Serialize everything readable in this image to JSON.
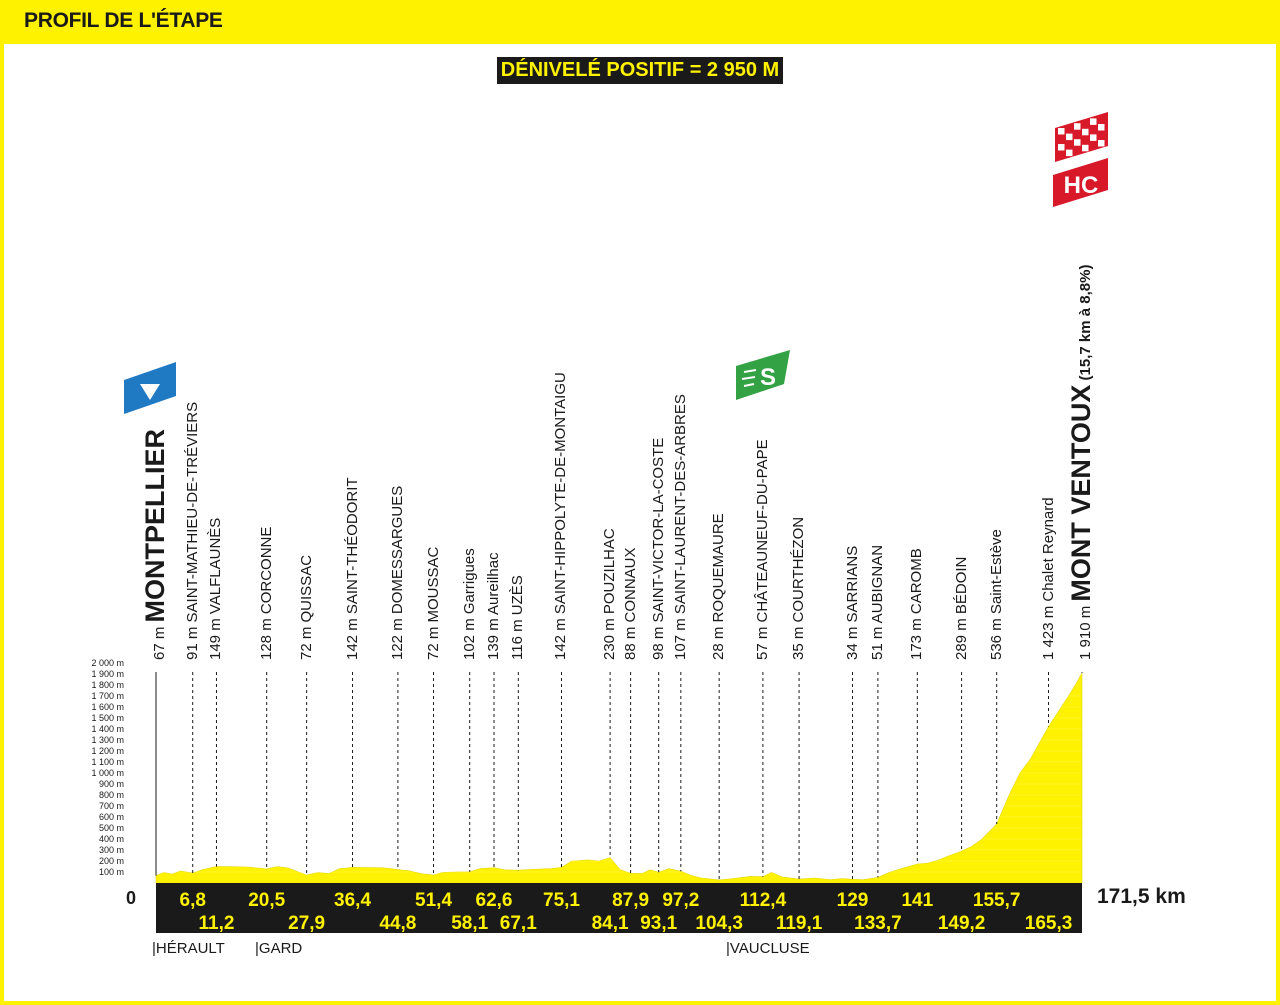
{
  "title": "PROFIL DE L'ÉTAPE",
  "denivele": "DÉNIVELÉ POSITIF = 2 950 M",
  "total_distance": "171,5 km",
  "start_km": "0",
  "departments": [
    "|HÉRAULT",
    "|GARD",
    "|VAUCLUSE"
  ],
  "markers": {
    "start": "start-flag-icon",
    "sprint": "S",
    "finish_category": "HC",
    "finish_flag": "checkered-flag-icon"
  },
  "colors": {
    "profile_fill": "#fff200",
    "bar": "#1a1a1a",
    "km_text": "#fff200",
    "start_marker": "#1f7ac3",
    "sprint_marker": "#33a244",
    "finish_marker": "#d7192a"
  },
  "chart_data": {
    "type": "area",
    "title": "PROFIL DE L'ÉTAPE",
    "ylabel_ticks": [
      "100 m",
      "200 m",
      "300 m",
      "400 m",
      "500 m",
      "600 m",
      "700 m",
      "800 m",
      "900 m",
      "1 000 m",
      "1 100 m",
      "1 200 m",
      "1 300 m",
      "1 400 m",
      "1 500 m",
      "1 600 m",
      "1 700 m",
      "1 800 m",
      "1 900 m",
      "2 000 m"
    ],
    "ylim": [
      0,
      2000
    ],
    "xlim": [
      0,
      171.5
    ],
    "waypoints": [
      {
        "km": 0,
        "km_label": "",
        "alt": 67,
        "label": "67 m",
        "name": "MONTPELLIER",
        "note": "",
        "major": true
      },
      {
        "km": 6.8,
        "km_label": "6,8",
        "alt": 91,
        "label": "91 m",
        "name": "SAINT-MATHIEU-DE-TRÉVIERS",
        "note": "",
        "major": false
      },
      {
        "km": 11.2,
        "km_label": "11,2",
        "alt": 149,
        "label": "149 m",
        "name": "VALFLAUNÈS",
        "note": "",
        "major": false
      },
      {
        "km": 20.5,
        "km_label": "20,5",
        "alt": 128,
        "label": "128 m",
        "name": "CORCONNE",
        "note": "",
        "major": false
      },
      {
        "km": 27.9,
        "km_label": "27,9",
        "alt": 72,
        "label": "72 m",
        "name": "QUISSAC",
        "note": "",
        "major": false
      },
      {
        "km": 36.4,
        "km_label": "36,4",
        "alt": 142,
        "label": "142 m",
        "name": "SAINT-THÉODORIT",
        "note": "",
        "major": false
      },
      {
        "km": 44.8,
        "km_label": "44,8",
        "alt": 122,
        "label": "122 m",
        "name": "DOMESSARGUES",
        "note": "",
        "major": false
      },
      {
        "km": 51.4,
        "km_label": "51,4",
        "alt": 72,
        "label": "72 m",
        "name": "MOUSSAC",
        "note": "",
        "major": false
      },
      {
        "km": 58.1,
        "km_label": "58,1",
        "alt": 102,
        "label": "102 m",
        "name": "Garrigues",
        "note": "",
        "major": false
      },
      {
        "km": 62.6,
        "km_label": "62,6",
        "alt": 139,
        "label": "139 m",
        "name": "Aureilhac",
        "note": "",
        "major": false
      },
      {
        "km": 67.1,
        "km_label": "67,1",
        "alt": 116,
        "label": "116 m",
        "name": "UZÈS",
        "note": "",
        "major": false
      },
      {
        "km": 75.1,
        "km_label": "75,1",
        "alt": 142,
        "label": "142 m",
        "name": "SAINT-HIPPOLYTE-DE-MONTAIGU",
        "note": "",
        "major": false
      },
      {
        "km": 84.1,
        "km_label": "84,1",
        "alt": 230,
        "label": "230 m",
        "name": "POUZILHAC",
        "note": "",
        "major": false
      },
      {
        "km": 87.9,
        "km_label": "87,9",
        "alt": 88,
        "label": "88 m",
        "name": "CONNAUX",
        "note": "",
        "major": false
      },
      {
        "km": 93.1,
        "km_label": "93,1",
        "alt": 98,
        "label": "98 m",
        "name": "SAINT-VICTOR-LA-COSTE",
        "note": "",
        "major": false
      },
      {
        "km": 97.2,
        "km_label": "97,2",
        "alt": 107,
        "label": "107 m",
        "name": "SAINT-LAURENT-DES-ARBRES",
        "note": "",
        "major": false
      },
      {
        "km": 104.3,
        "km_label": "104,3",
        "alt": 28,
        "label": "28 m",
        "name": "ROQUEMAURE",
        "note": "",
        "major": false
      },
      {
        "km": 112.4,
        "km_label": "112,4",
        "alt": 57,
        "label": "57 m",
        "name": "CHÂTEAUNEUF-DU-PAPE",
        "note": "",
        "major": false
      },
      {
        "km": 119.1,
        "km_label": "119,1",
        "alt": 35,
        "label": "35 m",
        "name": "COURTHÉZON",
        "note": "",
        "major": false
      },
      {
        "km": 129,
        "km_label": "129",
        "alt": 34,
        "label": "34 m",
        "name": "SARRIANS",
        "note": "",
        "major": false
      },
      {
        "km": 133.7,
        "km_label": "133,7",
        "alt": 51,
        "label": "51 m",
        "name": "AUBIGNAN",
        "note": "",
        "major": false
      },
      {
        "km": 141,
        "km_label": "141",
        "alt": 173,
        "label": "173 m",
        "name": "CAROMB",
        "note": "",
        "major": false
      },
      {
        "km": 149.2,
        "km_label": "149,2",
        "alt": 289,
        "label": "289 m",
        "name": "BÉDOIN",
        "note": "",
        "major": false
      },
      {
        "km": 155.7,
        "km_label": "155,7",
        "alt": 536,
        "label": "536 m",
        "name": "Saint-Estève",
        "note": "",
        "major": false
      },
      {
        "km": 165.3,
        "km_label": "165,3",
        "alt": 1423,
        "label": "1 423 m",
        "name": "Chalet Reynard",
        "note": "",
        "major": false
      },
      {
        "km": 171.5,
        "km_label": "",
        "alt": 1910,
        "label": "1 910 m",
        "name": "MONT VENTOUX",
        "note": "(15,7 km à 8,8%)",
        "major": true
      }
    ],
    "profile": [
      [
        0,
        67
      ],
      [
        1.5,
        95
      ],
      [
        3,
        80
      ],
      [
        4.5,
        110
      ],
      [
        6.8,
        91
      ],
      [
        8.5,
        120
      ],
      [
        11.2,
        149
      ],
      [
        14,
        148
      ],
      [
        17,
        145
      ],
      [
        20.5,
        128
      ],
      [
        22.5,
        150
      ],
      [
        24.5,
        135
      ],
      [
        27.9,
        72
      ],
      [
        30,
        95
      ],
      [
        32,
        85
      ],
      [
        34,
        130
      ],
      [
        36.4,
        142
      ],
      [
        39,
        140
      ],
      [
        42,
        138
      ],
      [
        44.8,
        122
      ],
      [
        47,
        110
      ],
      [
        49,
        85
      ],
      [
        51.4,
        72
      ],
      [
        53,
        95
      ],
      [
        55,
        100
      ],
      [
        58.1,
        102
      ],
      [
        60,
        130
      ],
      [
        62.6,
        139
      ],
      [
        64.5,
        120
      ],
      [
        67.1,
        116
      ],
      [
        70,
        125
      ],
      [
        73,
        130
      ],
      [
        75.1,
        142
      ],
      [
        77,
        200
      ],
      [
        80,
        210
      ],
      [
        82,
        200
      ],
      [
        84.1,
        230
      ],
      [
        86,
        120
      ],
      [
        87.9,
        88
      ],
      [
        90,
        85
      ],
      [
        91.5,
        120
      ],
      [
        93.1,
        98
      ],
      [
        95,
        130
      ],
      [
        97.2,
        107
      ],
      [
        99,
        70
      ],
      [
        101,
        45
      ],
      [
        104.3,
        28
      ],
      [
        107,
        40
      ],
      [
        110,
        60
      ],
      [
        112.4,
        57
      ],
      [
        114,
        95
      ],
      [
        116,
        55
      ],
      [
        119.1,
        35
      ],
      [
        122,
        45
      ],
      [
        125,
        30
      ],
      [
        127,
        40
      ],
      [
        129,
        34
      ],
      [
        131,
        30
      ],
      [
        133.7,
        51
      ],
      [
        136,
        100
      ],
      [
        138,
        130
      ],
      [
        141,
        173
      ],
      [
        143,
        180
      ],
      [
        145,
        210
      ],
      [
        147,
        250
      ],
      [
        149.2,
        289
      ],
      [
        151,
        330
      ],
      [
        153,
        400
      ],
      [
        155.7,
        536
      ],
      [
        158,
        800
      ],
      [
        160,
        1000
      ],
      [
        162,
        1130
      ],
      [
        165.3,
        1423
      ],
      [
        167,
        1550
      ],
      [
        169,
        1700
      ],
      [
        170.5,
        1820
      ],
      [
        171.5,
        1910
      ]
    ]
  }
}
